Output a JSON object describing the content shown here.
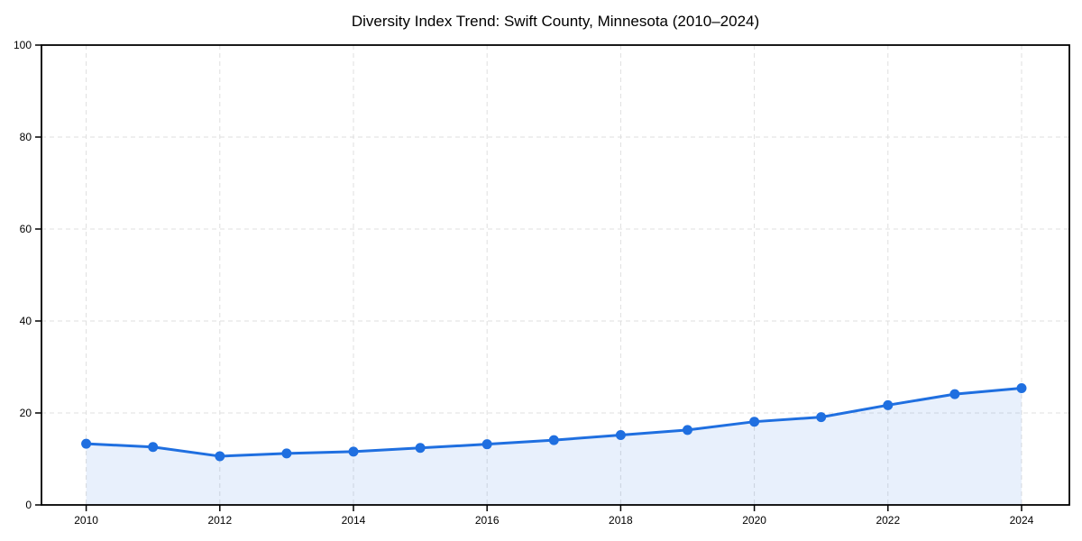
{
  "title": "Diversity Index Trend: Swift County, Minnesota (2010–2024)",
  "colors": {
    "line": "#1f6fe0",
    "marker": "#1f6fe0",
    "area_fill": "#1f6fe0",
    "area_fill_opacity": 0.1,
    "grid": "#dfdfdf",
    "spine": "#000000",
    "tick": "#000000",
    "text": "#000000",
    "background": "#ffffff"
  },
  "chart_data": {
    "type": "line",
    "title": "Diversity Index Trend: Swift County, Minnesota (2010–2024)",
    "x": [
      2010,
      2011,
      2012,
      2013,
      2014,
      2015,
      2016,
      2017,
      2018,
      2019,
      2020,
      2021,
      2022,
      2023,
      2024
    ],
    "series": [
      {
        "name": "Diversity Index",
        "values": [
          13.3,
          12.6,
          10.6,
          11.2,
          11.6,
          12.4,
          13.2,
          14.1,
          15.2,
          16.3,
          18.1,
          19.1,
          21.7,
          24.1,
          25.4
        ]
      }
    ],
    "xlabel": "",
    "ylabel": "",
    "ylim": [
      0,
      100
    ],
    "yticks": [
      0,
      20,
      40,
      60,
      80,
      100
    ],
    "xticks": [
      2010,
      2012,
      2014,
      2016,
      2018,
      2020,
      2022,
      2024
    ],
    "grid": true,
    "grid_style": "dashed",
    "legend_position": "none",
    "marker": "circle",
    "area_fill": true
  }
}
